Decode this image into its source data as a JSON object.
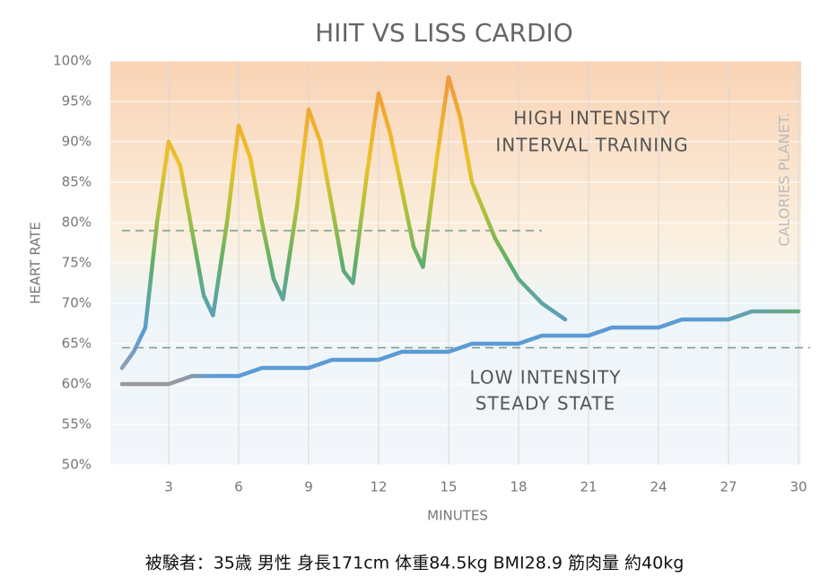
{
  "chart_data": {
    "type": "line",
    "title": "HIIT VS LISS CARDIO",
    "xlabel": "MINUTES",
    "ylabel": "HEART RATE",
    "xlim": [
      0.5,
      30.5
    ],
    "xticks": [
      3,
      6,
      9,
      12,
      15,
      18,
      21,
      24,
      27,
      30
    ],
    "ylim": [
      50,
      100
    ],
    "yticks": [
      {
        "value": 50,
        "label": "50%"
      },
      {
        "value": 55,
        "label": "55%"
      },
      {
        "value": 60,
        "label": "60%"
      },
      {
        "value": 65,
        "label": "65%"
      },
      {
        "value": 70,
        "label": "70%"
      },
      {
        "value": 75,
        "label": "75%"
      },
      {
        "value": 80,
        "label": "80%"
      },
      {
        "value": 85,
        "label": "85%"
      },
      {
        "value": 90,
        "label": "90%"
      },
      {
        "value": 95,
        "label": "95%"
      },
      {
        "value": 100,
        "label": "100%"
      }
    ],
    "grid": true,
    "series": [
      {
        "x": [
          1,
          1.5,
          2,
          2.5,
          3,
          3.5,
          4,
          4.5,
          4.9,
          5.5,
          6,
          6.5,
          7,
          7.5,
          7.9,
          8.5,
          9,
          9.5,
          10,
          10.5,
          10.9,
          11.5,
          12,
          12.5,
          13,
          13.5,
          13.9,
          14.5,
          15,
          15.5,
          16,
          17,
          18,
          19,
          20
        ],
        "values": [
          62,
          64,
          67,
          80,
          90,
          87,
          79,
          71,
          68.5,
          80,
          92,
          88,
          80,
          73,
          70.5,
          82,
          94,
          90,
          82,
          74,
          72.5,
          86,
          96,
          91,
          84,
          77,
          74.5,
          88,
          98,
          93,
          85,
          78,
          73,
          70,
          68
        ]
      },
      {
        "x": [
          1,
          2,
          3,
          4,
          5,
          6,
          7,
          8,
          9,
          10,
          11,
          12,
          13,
          14,
          15,
          16,
          17,
          18,
          19,
          20,
          21,
          22,
          23,
          24,
          25,
          26,
          27,
          28,
          29,
          30
        ],
        "values": [
          60,
          60,
          60,
          61,
          61,
          61,
          62,
          62,
          62,
          63,
          63,
          63,
          64,
          64,
          64,
          65,
          65,
          65,
          66,
          66,
          66,
          67,
          67,
          67,
          68,
          68,
          68,
          69,
          69,
          69
        ],
        "color": "#5b9bd5"
      }
    ],
    "reference_lines": [
      {
        "value": 79,
        "x": [
          1,
          19
        ]
      },
      {
        "value": 64.5,
        "x": [
          1,
          30.5
        ]
      }
    ],
    "annotations": [
      "HIGH INTENSITY",
      "INTERVAL TRAINING",
      "LOW INTENSITY",
      "STEADY STATE"
    ],
    "watermark": "CALORIES PLANET."
  },
  "caption": "被験者：35歳 男性 身長171cm 体重84.5kg BMI28.9 筋肉量 約40kg"
}
